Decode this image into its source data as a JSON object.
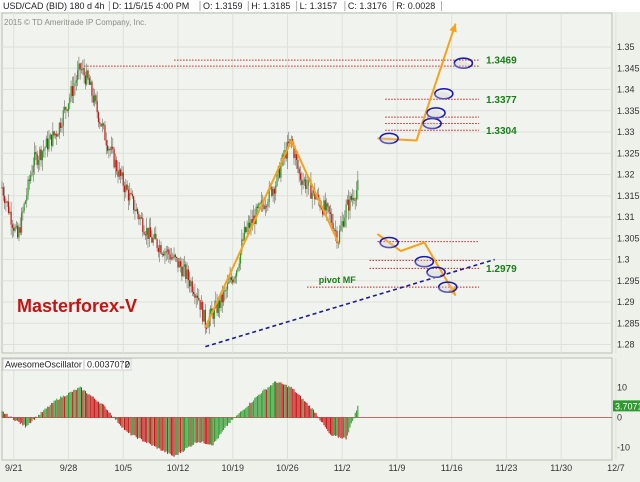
{
  "header": {
    "symbol": "USD/CAD (BID) 180 d 4h",
    "date": "D: 11/5/15 4:00 PM",
    "open": "O: 1.3159",
    "high": "H: 1.3185",
    "low": "L: 1.3157",
    "close": "C: 1.3176",
    "range": "R: 0.0028",
    "copyright": "2015 © TD Ameritrade IP Company, Inc."
  },
  "watermark": "Masterforex-V",
  "oscillator": {
    "label": "AwesomeOscillator",
    "value": "0.0037072",
    "extra": "0",
    "marker": "3.7071"
  },
  "colors": {
    "background": "#eef1ea",
    "bull": "#2f9a2f",
    "bear": "#c41414",
    "level": "#cc2222",
    "trend": "#1c1c8a",
    "projection": "#f7a21b",
    "level_text": "#1a7d1a",
    "watermark": "#c41414"
  },
  "chart_data": [
    {
      "type": "candlestick",
      "title": "USD/CAD (BID) 180 d 4h",
      "x_ticks": [
        "9/21",
        "9/28",
        "10/5",
        "10/12",
        "10/19",
        "10/26",
        "11/2",
        "11/9",
        "11/16",
        "11/23",
        "11/30",
        "12/7"
      ],
      "y_ticks": [
        "1.35",
        "1.345",
        "1.34",
        "1.335",
        "1.33",
        "1.325",
        "1.32",
        "1.315",
        "1.31",
        "1.305",
        "1.3",
        "1.295",
        "1.29",
        "1.285",
        "1.28"
      ],
      "ylim": [
        1.278,
        1.358
      ],
      "x_range_days": [
        0,
        78
      ],
      "grid": true,
      "anchors": [
        [
          0,
          1.317
        ],
        [
          2,
          1.305
        ],
        [
          4,
          1.323
        ],
        [
          7,
          1.33
        ],
        [
          9,
          1.34
        ],
        [
          10,
          1.345
        ],
        [
          11,
          1.342
        ],
        [
          13,
          1.33
        ],
        [
          15,
          1.32
        ],
        [
          17,
          1.312
        ],
        [
          19,
          1.305
        ],
        [
          21,
          1.302
        ],
        [
          23,
          1.298
        ],
        [
          25,
          1.292
        ],
        [
          26,
          1.285
        ],
        [
          28,
          1.29
        ],
        [
          30,
          1.298
        ],
        [
          31,
          1.306
        ],
        [
          33,
          1.312
        ],
        [
          35,
          1.318
        ],
        [
          36,
          1.324
        ],
        [
          37,
          1.328
        ],
        [
          38,
          1.32
        ],
        [
          40,
          1.315
        ],
        [
          42,
          1.31
        ],
        [
          43,
          1.305
        ],
        [
          44,
          1.312
        ],
        [
          45.5,
          1.317
        ]
      ],
      "price_levels": [
        {
          "value": 1.3469,
          "label": "1.3469"
        },
        {
          "value": 1.3377,
          "label": "1.3377"
        },
        {
          "value": 1.3304,
          "label": "1.3304"
        },
        {
          "value": 1.2979,
          "label": "1.2979"
        },
        {
          "value": 1.3455,
          "label": ""
        },
        {
          "value": 1.3335,
          "label": ""
        },
        {
          "value": 1.332,
          "label": ""
        },
        {
          "value": 1.3042,
          "label": ""
        },
        {
          "value": 1.2998,
          "label": ""
        },
        {
          "value": 1.2935,
          "label": "pivot MF"
        }
      ],
      "trend_line": [
        [
          26,
          1.2795
        ],
        [
          63,
          1.3
        ]
      ],
      "swing_path": [
        [
          26,
          1.284
        ],
        [
          37,
          1.328
        ],
        [
          43,
          1.304
        ]
      ],
      "projection_up": [
        [
          48,
          1.3285
        ],
        [
          53,
          1.328
        ],
        [
          58,
          1.3555
        ]
      ],
      "projection_down": [
        [
          48,
          1.306
        ],
        [
          51,
          1.302
        ],
        [
          54,
          1.304
        ],
        [
          58,
          1.2915
        ]
      ],
      "circles": [
        [
          49.5,
          1.3285
        ],
        [
          55,
          1.332
        ],
        [
          55.5,
          1.3345
        ],
        [
          56.5,
          1.339
        ],
        [
          59,
          1.3462
        ],
        [
          49.5,
          1.304
        ],
        [
          54,
          1.2995
        ],
        [
          55.5,
          1.297
        ],
        [
          57,
          1.2935
        ]
      ]
    },
    {
      "type": "bar",
      "title": "AwesomeOscillator",
      "ylim": [
        -15,
        15
      ],
      "y_ticks": [
        "10",
        "0",
        "-10"
      ],
      "last_value": 3.7071,
      "profile": [
        [
          0,
          2
        ],
        [
          3,
          -3
        ],
        [
          7,
          6
        ],
        [
          10,
          10
        ],
        [
          13,
          4
        ],
        [
          16,
          -5
        ],
        [
          19,
          -9
        ],
        [
          22,
          -13
        ],
        [
          25,
          -8
        ],
        [
          27,
          -9
        ],
        [
          29,
          -2
        ],
        [
          31,
          3
        ],
        [
          33,
          8
        ],
        [
          35,
          12
        ],
        [
          37,
          10
        ],
        [
          40,
          2
        ],
        [
          42,
          -6
        ],
        [
          44,
          -7
        ],
        [
          45.5,
          3.7
        ]
      ]
    }
  ]
}
